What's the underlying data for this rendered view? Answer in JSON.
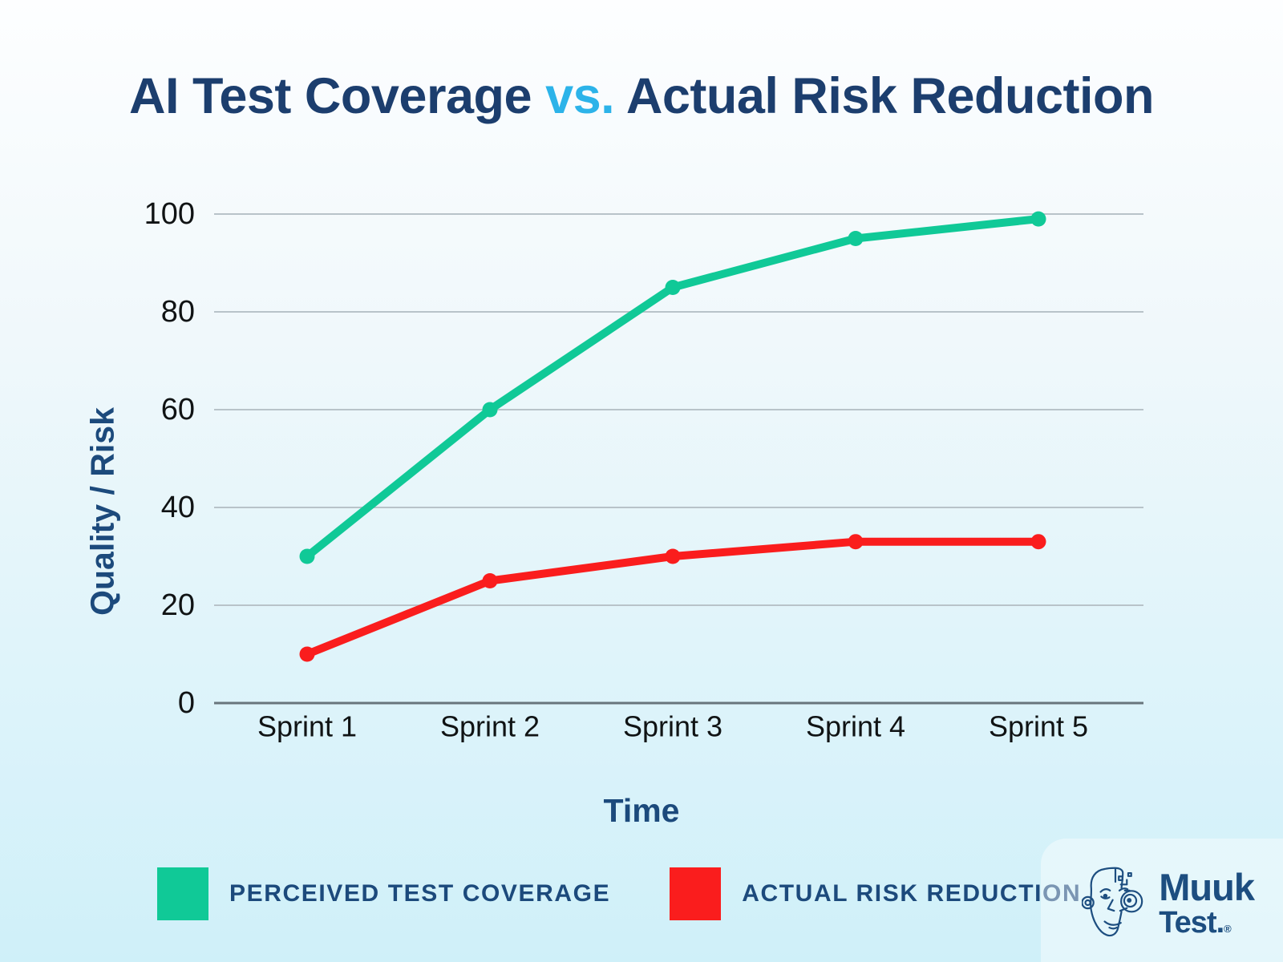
{
  "header": {
    "title_part1": "AI Test Coverage",
    "title_vs": "vs.",
    "title_part2": "Actual Risk Reduction"
  },
  "chart_data": {
    "type": "line",
    "categories": [
      "Sprint 1",
      "Sprint 2",
      "Sprint 3",
      "Sprint 4",
      "Sprint 5"
    ],
    "series": [
      {
        "name": "PERCEIVED TEST COVERAGE",
        "color": "#10c997",
        "values": [
          30,
          60,
          85,
          95,
          99
        ]
      },
      {
        "name": "ACTUAL RISK REDUCTION",
        "color": "#fa1d1d",
        "values": [
          10,
          25,
          30,
          33,
          33
        ]
      }
    ],
    "title": "AI Test Coverage vs. Actual Risk Reduction",
    "xlabel": "Time",
    "ylabel": "Quality / Risk",
    "yticks": [
      0,
      20,
      40,
      60,
      80,
      100
    ],
    "ylim": [
      0,
      100
    ],
    "grid": true,
    "legend_position": "bottom"
  },
  "logo": {
    "word_top": "Muuk",
    "word_bottom": "Test.",
    "registered": "®"
  },
  "colors": {
    "title_navy": "#1c3e6e",
    "title_cyan": "#2cb3e9",
    "axis_label_navy": "#1c4a7c",
    "tick_text": "#101314",
    "grid_gray": "#b8c3c9",
    "axis_gray": "#68757c",
    "background_bottom": "#cff0f9",
    "logo_navy": "#1d4e80"
  }
}
